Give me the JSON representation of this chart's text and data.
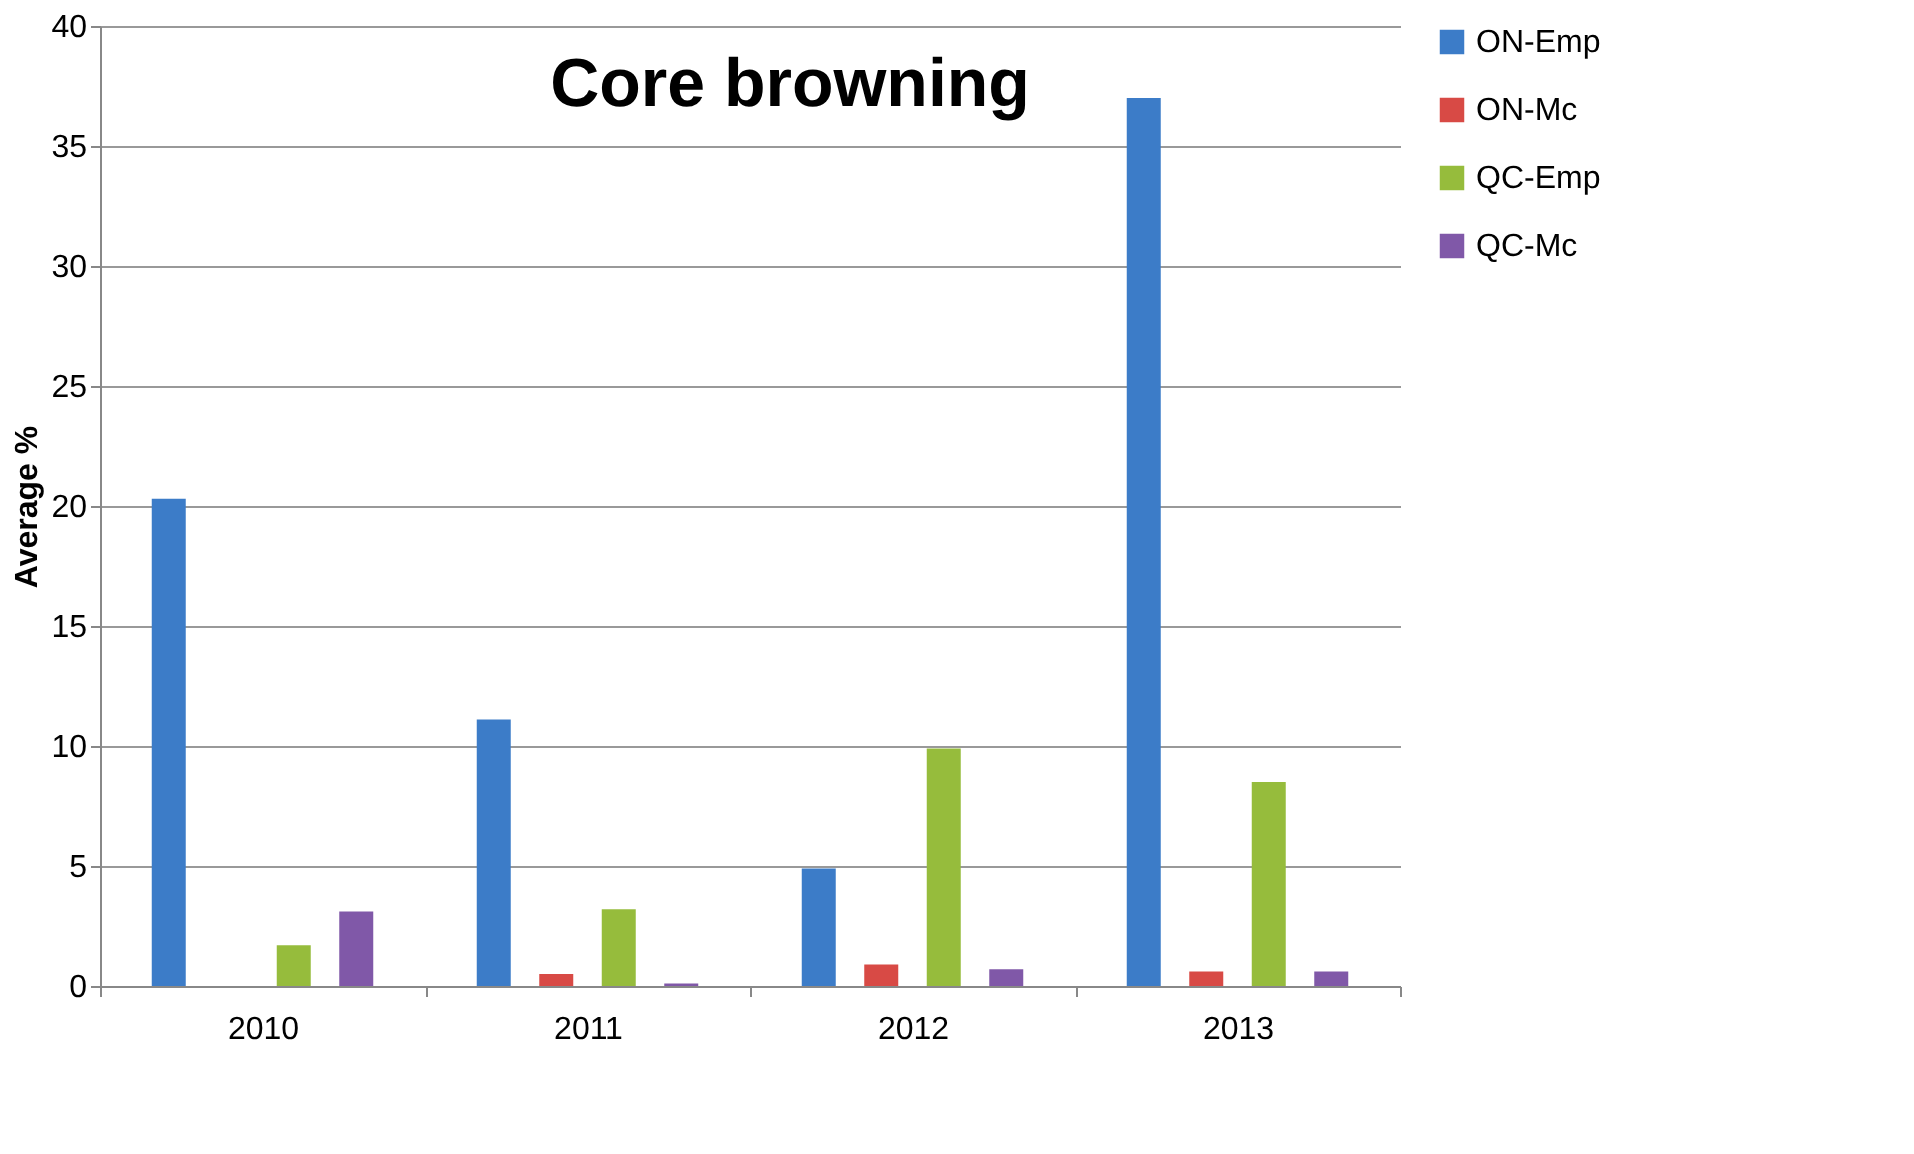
{
  "chart_data": {
    "type": "bar",
    "title": "Core browning",
    "ylabel": "Average %",
    "categories": [
      "2010",
      "2011",
      "2012",
      "2013"
    ],
    "series": [
      {
        "name": "ON-Emp",
        "color": "#3c7cc8",
        "values": [
          20.3,
          11.1,
          4.9,
          37
        ]
      },
      {
        "name": "ON-Mc",
        "color": "#d84a45",
        "values": [
          0,
          0.5,
          0.9,
          0.6
        ]
      },
      {
        "name": "QC-Emp",
        "color": "#96bc3c",
        "values": [
          1.7,
          3.2,
          9.9,
          8.5
        ]
      },
      {
        "name": "QC-Mc",
        "color": "#8058a8",
        "values": [
          3.1,
          0.1,
          0.7,
          0.6
        ]
      }
    ],
    "ylim": [
      0,
      40
    ],
    "yticks": [
      0,
      5,
      10,
      15,
      20,
      25,
      30,
      35,
      40
    ],
    "grid": "y",
    "legend": "right"
  }
}
